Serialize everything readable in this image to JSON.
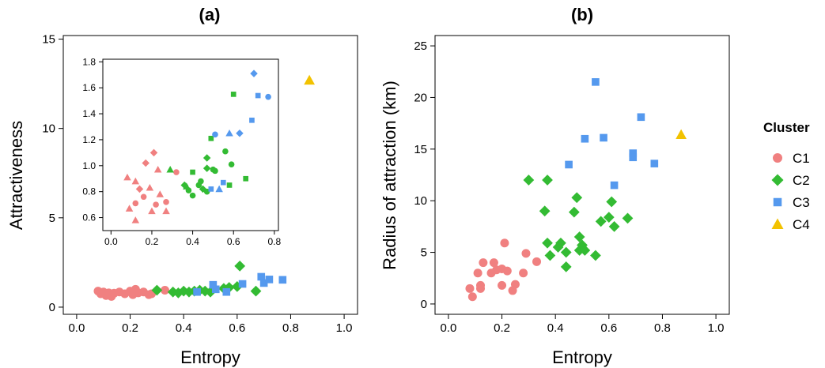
{
  "colors": {
    "C1": "#F08080",
    "C2": "#33BB33",
    "C3": "#5599EE",
    "C4": "#F2C200"
  },
  "shapes": {
    "C1": "circle",
    "C2": "diamond",
    "C3": "square",
    "C4": "triangle"
  },
  "legend": {
    "title": "Cluster",
    "placement": "right",
    "items": [
      {
        "key": "C1",
        "label": "C1"
      },
      {
        "key": "C2",
        "label": "C2"
      },
      {
        "key": "C3",
        "label": "C3"
      },
      {
        "key": "C4",
        "label": "C4"
      }
    ]
  },
  "chart_data": [
    {
      "type": "scatter",
      "title": "(a)",
      "xlabel": "Entropy",
      "ylabel": "Attractiveness",
      "xlim": [
        -0.05,
        1.05
      ],
      "ylim": [
        -0.4,
        15.2
      ],
      "xticks": [
        0.0,
        0.2,
        0.4,
        0.6,
        0.8,
        1.0
      ],
      "xtick_labels": [
        "0.0",
        "0.2",
        "0.4",
        "0.6",
        "0.8",
        "1.0"
      ],
      "yticks": [
        0,
        5,
        10,
        15
      ],
      "ytick_labels": [
        "0",
        "5",
        "10",
        "15"
      ],
      "grid": false,
      "points": [
        {
          "cluster": "C1",
          "shape": "circle",
          "x": 0.08,
          "y": 0.9
        },
        {
          "cluster": "C1",
          "shape": "circle",
          "x": 0.09,
          "y": 0.75
        },
        {
          "cluster": "C1",
          "shape": "circle",
          "x": 0.1,
          "y": 0.85
        },
        {
          "cluster": "C1",
          "shape": "circle",
          "x": 0.11,
          "y": 0.65
        },
        {
          "cluster": "C1",
          "shape": "circle",
          "x": 0.12,
          "y": 0.8
        },
        {
          "cluster": "C1",
          "shape": "circle",
          "x": 0.13,
          "y": 0.6
        },
        {
          "cluster": "C1",
          "shape": "circle",
          "x": 0.14,
          "y": 0.78
        },
        {
          "cluster": "C1",
          "shape": "circle",
          "x": 0.16,
          "y": 0.85
        },
        {
          "cluster": "C1",
          "shape": "circle",
          "x": 0.18,
          "y": 0.75
        },
        {
          "cluster": "C1",
          "shape": "circle",
          "x": 0.2,
          "y": 0.9
        },
        {
          "cluster": "C1",
          "shape": "circle",
          "x": 0.21,
          "y": 0.7
        },
        {
          "cluster": "C1",
          "shape": "circle",
          "x": 0.22,
          "y": 1.0
        },
        {
          "cluster": "C1",
          "shape": "circle",
          "x": 0.23,
          "y": 0.8
        },
        {
          "cluster": "C1",
          "shape": "circle",
          "x": 0.25,
          "y": 0.85
        },
        {
          "cluster": "C1",
          "shape": "circle",
          "x": 0.27,
          "y": 0.7
        },
        {
          "cluster": "C1",
          "shape": "circle",
          "x": 0.28,
          "y": 0.75
        },
        {
          "cluster": "C1",
          "shape": "circle",
          "x": 0.33,
          "y": 0.95
        },
        {
          "cluster": "C2",
          "shape": "diamond",
          "x": 0.3,
          "y": 0.95
        },
        {
          "cluster": "C2",
          "shape": "diamond",
          "x": 0.36,
          "y": 0.85
        },
        {
          "cluster": "C2",
          "shape": "diamond",
          "x": 0.38,
          "y": 0.8
        },
        {
          "cluster": "C2",
          "shape": "diamond",
          "x": 0.4,
          "y": 0.9
        },
        {
          "cluster": "C2",
          "shape": "diamond",
          "x": 0.42,
          "y": 0.85
        },
        {
          "cluster": "C2",
          "shape": "diamond",
          "x": 0.44,
          "y": 0.9
        },
        {
          "cluster": "C2",
          "shape": "diamond",
          "x": 0.46,
          "y": 0.95
        },
        {
          "cluster": "C2",
          "shape": "diamond",
          "x": 0.48,
          "y": 0.9
        },
        {
          "cluster": "C2",
          "shape": "diamond",
          "x": 0.5,
          "y": 0.85
        },
        {
          "cluster": "C2",
          "shape": "diamond",
          "x": 0.55,
          "y": 1.05
        },
        {
          "cluster": "C2",
          "shape": "diamond",
          "x": 0.57,
          "y": 1.1
        },
        {
          "cluster": "C2",
          "shape": "diamond",
          "x": 0.6,
          "y": 1.15
        },
        {
          "cluster": "C2",
          "shape": "diamond",
          "x": 0.61,
          "y": 2.3
        },
        {
          "cluster": "C2",
          "shape": "diamond",
          "x": 0.67,
          "y": 0.9
        },
        {
          "cluster": "C3",
          "shape": "square",
          "x": 0.45,
          "y": 0.85
        },
        {
          "cluster": "C3",
          "shape": "square",
          "x": 0.51,
          "y": 1.25
        },
        {
          "cluster": "C3",
          "shape": "square",
          "x": 0.52,
          "y": 1.0
        },
        {
          "cluster": "C3",
          "shape": "square",
          "x": 0.56,
          "y": 0.85
        },
        {
          "cluster": "C3",
          "shape": "square",
          "x": 0.62,
          "y": 1.3
        },
        {
          "cluster": "C3",
          "shape": "square",
          "x": 0.69,
          "y": 1.7
        },
        {
          "cluster": "C3",
          "shape": "square",
          "x": 0.7,
          "y": 1.35
        },
        {
          "cluster": "C3",
          "shape": "square",
          "x": 0.72,
          "y": 1.55
        },
        {
          "cluster": "C3",
          "shape": "square",
          "x": 0.77,
          "y": 1.53
        },
        {
          "cluster": "C4",
          "shape": "triangle",
          "x": 0.87,
          "y": 12.7
        }
      ],
      "inset": {
        "xlim": [
          -0.04,
          0.82
        ],
        "ylim": [
          0.5,
          1.82
        ],
        "xticks": [
          0.0,
          0.2,
          0.4,
          0.6,
          0.8
        ],
        "xtick_labels": [
          "0.0",
          "0.2",
          "0.4",
          "0.6",
          "0.8"
        ],
        "yticks": [
          0.6,
          0.8,
          1.0,
          1.2,
          1.4,
          1.6,
          1.8
        ],
        "ytick_labels": [
          "0.6",
          "0.8",
          "1.0",
          "1.2",
          "1.4",
          "1.6",
          "1.8"
        ],
        "points": [
          {
            "cluster": "C1",
            "shape": "triangle",
            "x": 0.08,
            "y": 0.91
          },
          {
            "cluster": "C1",
            "shape": "triangle",
            "x": 0.09,
            "y": 0.67
          },
          {
            "cluster": "C1",
            "shape": "circle",
            "x": 0.12,
            "y": 0.71
          },
          {
            "cluster": "C1",
            "shape": "triangle",
            "x": 0.12,
            "y": 0.58
          },
          {
            "cluster": "C1",
            "shape": "triangle",
            "x": 0.12,
            "y": 0.88
          },
          {
            "cluster": "C1",
            "shape": "diamond",
            "x": 0.14,
            "y": 0.82
          },
          {
            "cluster": "C1",
            "shape": "circle",
            "x": 0.16,
            "y": 0.76
          },
          {
            "cluster": "C1",
            "shape": "diamond",
            "x": 0.17,
            "y": 1.02
          },
          {
            "cluster": "C1",
            "shape": "triangle",
            "x": 0.19,
            "y": 0.83
          },
          {
            "cluster": "C1",
            "shape": "triangle",
            "x": 0.2,
            "y": 0.65
          },
          {
            "cluster": "C1",
            "shape": "diamond",
            "x": 0.21,
            "y": 1.1
          },
          {
            "cluster": "C1",
            "shape": "circle",
            "x": 0.22,
            "y": 0.7
          },
          {
            "cluster": "C1",
            "shape": "triangle",
            "x": 0.23,
            "y": 0.97
          },
          {
            "cluster": "C1",
            "shape": "triangle",
            "x": 0.24,
            "y": 0.78
          },
          {
            "cluster": "C1",
            "shape": "circle",
            "x": 0.27,
            "y": 0.72
          },
          {
            "cluster": "C1",
            "shape": "triangle",
            "x": 0.27,
            "y": 0.65
          },
          {
            "cluster": "C1",
            "shape": "circle",
            "x": 0.32,
            "y": 0.95
          },
          {
            "cluster": "C2",
            "shape": "triangle",
            "x": 0.29,
            "y": 0.97
          },
          {
            "cluster": "C2",
            "shape": "diamond",
            "x": 0.36,
            "y": 0.85
          },
          {
            "cluster": "C2",
            "shape": "circle",
            "x": 0.38,
            "y": 0.81
          },
          {
            "cluster": "C2",
            "shape": "triangle",
            "x": 0.37,
            "y": 0.84
          },
          {
            "cluster": "C2",
            "shape": "circle",
            "x": 0.4,
            "y": 0.77
          },
          {
            "cluster": "C2",
            "shape": "square",
            "x": 0.4,
            "y": 0.95
          },
          {
            "cluster": "C2",
            "shape": "circle",
            "x": 0.43,
            "y": 0.85
          },
          {
            "cluster": "C2",
            "shape": "circle",
            "x": 0.44,
            "y": 0.88
          },
          {
            "cluster": "C2",
            "shape": "diamond",
            "x": 0.45,
            "y": 0.82
          },
          {
            "cluster": "C2",
            "shape": "circle",
            "x": 0.47,
            "y": 0.8
          },
          {
            "cluster": "C2",
            "shape": "diamond",
            "x": 0.47,
            "y": 0.98
          },
          {
            "cluster": "C2",
            "shape": "diamond",
            "x": 0.47,
            "y": 1.06
          },
          {
            "cluster": "C2",
            "shape": "circle",
            "x": 0.5,
            "y": 0.97
          },
          {
            "cluster": "C2",
            "shape": "square",
            "x": 0.49,
            "y": 1.21
          },
          {
            "cluster": "C2",
            "shape": "circle",
            "x": 0.51,
            "y": 0.96
          },
          {
            "cluster": "C2",
            "shape": "circle",
            "x": 0.56,
            "y": 1.11
          },
          {
            "cluster": "C2",
            "shape": "square",
            "x": 0.58,
            "y": 0.85
          },
          {
            "cluster": "C2",
            "shape": "circle",
            "x": 0.59,
            "y": 1.01
          },
          {
            "cluster": "C2",
            "shape": "square",
            "x": 0.6,
            "y": 1.55
          },
          {
            "cluster": "C2",
            "shape": "square",
            "x": 0.66,
            "y": 0.9
          },
          {
            "cluster": "C3",
            "shape": "square",
            "x": 0.49,
            "y": 0.82
          },
          {
            "cluster": "C3",
            "shape": "circle",
            "x": 0.51,
            "y": 1.24
          },
          {
            "cluster": "C3",
            "shape": "triangle",
            "x": 0.53,
            "y": 0.82
          },
          {
            "cluster": "C3",
            "shape": "square",
            "x": 0.55,
            "y": 0.87
          },
          {
            "cluster": "C3",
            "shape": "triangle",
            "x": 0.58,
            "y": 1.25
          },
          {
            "cluster": "C3",
            "shape": "diamond",
            "x": 0.63,
            "y": 1.25
          },
          {
            "cluster": "C3",
            "shape": "square",
            "x": 0.69,
            "y": 1.35
          },
          {
            "cluster": "C3",
            "shape": "diamond",
            "x": 0.7,
            "y": 1.71
          },
          {
            "cluster": "C3",
            "shape": "square",
            "x": 0.72,
            "y": 1.54
          },
          {
            "cluster": "C3",
            "shape": "circle",
            "x": 0.77,
            "y": 1.53
          }
        ]
      }
    },
    {
      "type": "scatter",
      "title": "(b)",
      "xlabel": "Entropy",
      "ylabel": "Radius of attraction (km)",
      "xlim": [
        -0.05,
        1.05
      ],
      "ylim": [
        -1,
        26
      ],
      "xticks": [
        0.0,
        0.2,
        0.4,
        0.6,
        0.8,
        1.0
      ],
      "xtick_labels": [
        "0.0",
        "0.2",
        "0.4",
        "0.6",
        "0.8",
        "1.0"
      ],
      "yticks": [
        0,
        5,
        10,
        15,
        20,
        25
      ],
      "ytick_labels": [
        "0",
        "5",
        "10",
        "15",
        "20",
        "25"
      ],
      "grid": false,
      "points": [
        {
          "cluster": "C1",
          "shape": "circle",
          "x": 0.08,
          "y": 1.5
        },
        {
          "cluster": "C1",
          "shape": "circle",
          "x": 0.09,
          "y": 0.7
        },
        {
          "cluster": "C1",
          "shape": "circle",
          "x": 0.11,
          "y": 3.0
        },
        {
          "cluster": "C1",
          "shape": "circle",
          "x": 0.12,
          "y": 1.8
        },
        {
          "cluster": "C1",
          "shape": "circle",
          "x": 0.12,
          "y": 1.5
        },
        {
          "cluster": "C1",
          "shape": "circle",
          "x": 0.13,
          "y": 4.0
        },
        {
          "cluster": "C1",
          "shape": "circle",
          "x": 0.16,
          "y": 3.0
        },
        {
          "cluster": "C1",
          "shape": "circle",
          "x": 0.17,
          "y": 4.0
        },
        {
          "cluster": "C1",
          "shape": "circle",
          "x": 0.18,
          "y": 3.3
        },
        {
          "cluster": "C1",
          "shape": "circle",
          "x": 0.2,
          "y": 1.8
        },
        {
          "cluster": "C1",
          "shape": "circle",
          "x": 0.2,
          "y": 3.4
        },
        {
          "cluster": "C1",
          "shape": "circle",
          "x": 0.21,
          "y": 5.9
        },
        {
          "cluster": "C1",
          "shape": "circle",
          "x": 0.22,
          "y": 3.2
        },
        {
          "cluster": "C1",
          "shape": "circle",
          "x": 0.24,
          "y": 1.3
        },
        {
          "cluster": "C1",
          "shape": "circle",
          "x": 0.25,
          "y": 1.9
        },
        {
          "cluster": "C1",
          "shape": "circle",
          "x": 0.28,
          "y": 3.0
        },
        {
          "cluster": "C1",
          "shape": "circle",
          "x": 0.29,
          "y": 4.9
        },
        {
          "cluster": "C1",
          "shape": "circle",
          "x": 0.33,
          "y": 4.1
        },
        {
          "cluster": "C2",
          "shape": "diamond",
          "x": 0.3,
          "y": 12.0
        },
        {
          "cluster": "C2",
          "shape": "diamond",
          "x": 0.36,
          "y": 9.0
        },
        {
          "cluster": "C2",
          "shape": "diamond",
          "x": 0.37,
          "y": 12.0
        },
        {
          "cluster": "C2",
          "shape": "diamond",
          "x": 0.37,
          "y": 5.9
        },
        {
          "cluster": "C2",
          "shape": "diamond",
          "x": 0.38,
          "y": 4.7
        },
        {
          "cluster": "C2",
          "shape": "diamond",
          "x": 0.41,
          "y": 5.5
        },
        {
          "cluster": "C2",
          "shape": "diamond",
          "x": 0.42,
          "y": 5.9
        },
        {
          "cluster": "C2",
          "shape": "diamond",
          "x": 0.44,
          "y": 3.6
        },
        {
          "cluster": "C2",
          "shape": "diamond",
          "x": 0.44,
          "y": 5.0
        },
        {
          "cluster": "C2",
          "shape": "diamond",
          "x": 0.47,
          "y": 8.9
        },
        {
          "cluster": "C2",
          "shape": "diamond",
          "x": 0.48,
          "y": 10.3
        },
        {
          "cluster": "C2",
          "shape": "diamond",
          "x": 0.49,
          "y": 6.5
        },
        {
          "cluster": "C2",
          "shape": "diamond",
          "x": 0.49,
          "y": 5.2
        },
        {
          "cluster": "C2",
          "shape": "diamond",
          "x": 0.5,
          "y": 5.7
        },
        {
          "cluster": "C2",
          "shape": "diamond",
          "x": 0.51,
          "y": 5.2
        },
        {
          "cluster": "C2",
          "shape": "diamond",
          "x": 0.55,
          "y": 4.7
        },
        {
          "cluster": "C2",
          "shape": "diamond",
          "x": 0.57,
          "y": 8.0
        },
        {
          "cluster": "C2",
          "shape": "diamond",
          "x": 0.6,
          "y": 8.4
        },
        {
          "cluster": "C2",
          "shape": "diamond",
          "x": 0.61,
          "y": 9.9
        },
        {
          "cluster": "C2",
          "shape": "diamond",
          "x": 0.62,
          "y": 7.5
        },
        {
          "cluster": "C2",
          "shape": "diamond",
          "x": 0.67,
          "y": 8.3
        },
        {
          "cluster": "C3",
          "shape": "square",
          "x": 0.45,
          "y": 13.5
        },
        {
          "cluster": "C3",
          "shape": "square",
          "x": 0.51,
          "y": 16.0
        },
        {
          "cluster": "C3",
          "shape": "square",
          "x": 0.55,
          "y": 21.5
        },
        {
          "cluster": "C3",
          "shape": "square",
          "x": 0.58,
          "y": 16.1
        },
        {
          "cluster": "C3",
          "shape": "square",
          "x": 0.62,
          "y": 11.5
        },
        {
          "cluster": "C3",
          "shape": "square",
          "x": 0.69,
          "y": 14.6
        },
        {
          "cluster": "C3",
          "shape": "square",
          "x": 0.69,
          "y": 14.2
        },
        {
          "cluster": "C3",
          "shape": "square",
          "x": 0.72,
          "y": 18.1
        },
        {
          "cluster": "C3",
          "shape": "square",
          "x": 0.77,
          "y": 13.6
        },
        {
          "cluster": "C4",
          "shape": "triangle",
          "x": 0.87,
          "y": 16.4
        }
      ]
    }
  ]
}
